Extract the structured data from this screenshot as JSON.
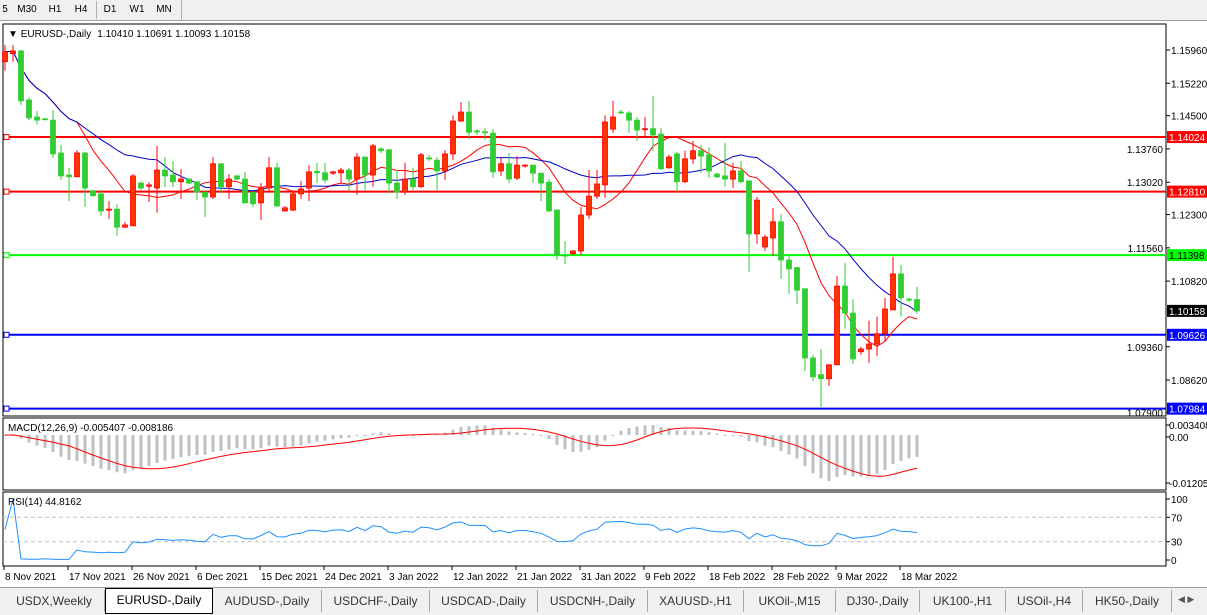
{
  "toolbar": {
    "timeframes": [
      {
        "label": "5"
      },
      {
        "label": "M30"
      },
      {
        "label": "H1"
      },
      {
        "label": "H4"
      },
      {
        "label": "D1",
        "active": true
      },
      {
        "label": "W1"
      },
      {
        "label": "MN"
      }
    ]
  },
  "chart": {
    "header": "EURUSD-,Daily",
    "ohlc_text": "1.10410 1.10691 1.10093 1.10158",
    "macd_label": "MACD(12,26,9) -0.005407 -0.008186",
    "rsi_label": "RSI(14) 44.8162",
    "macd_ticks": [
      "0.003408",
      "0.00",
      "-0.01205"
    ],
    "rsi_ticks": [
      "100",
      "70",
      "30",
      "0"
    ],
    "colors": {
      "bull": "#ff3300",
      "bear": "#32cd32",
      "fast_ma": "#ff0000",
      "slow_ma": "#0000c8",
      "macd_hist": "#c0c0c0",
      "macd_signal": "#ff0000",
      "rsi": "#1e90ff"
    }
  },
  "chart_data": {
    "type": "candlestick",
    "symbol": "EURUSD-",
    "timeframe": "Daily",
    "ylim": [
      1.078,
      1.1608
    ],
    "price_ticks": [
      "1.15960",
      "1.15220",
      "1.14500",
      "1.13760",
      "1.13020",
      "1.12300",
      "1.11560",
      "1.10820",
      "1.09360",
      "1.08620",
      "1.07900"
    ],
    "current_price": "1.10158",
    "hlines": [
      {
        "price": "1.14024",
        "color": "#ff0000"
      },
      {
        "price": "1.12810",
        "color": "#ff0000"
      },
      {
        "price": "1.11398",
        "color": "#00ff00"
      },
      {
        "price": "1.09626",
        "color": "#0000ff"
      },
      {
        "price": "1.07984",
        "color": "#0000ff"
      }
    ],
    "date_ticks": [
      {
        "label": "8 Nov 2021",
        "bar": 0
      },
      {
        "label": "17 Nov 2021",
        "bar": 8
      },
      {
        "label": "26 Nov 2021",
        "bar": 16
      },
      {
        "label": "6 Dec 2021",
        "bar": 24
      },
      {
        "label": "15 Dec 2021",
        "bar": 32
      },
      {
        "label": "24 Dec 2021",
        "bar": 40
      },
      {
        "label": "3 Jan 2022",
        "bar": 48
      },
      {
        "label": "12 Jan 2022",
        "bar": 56
      },
      {
        "label": "21 Jan 2022",
        "bar": 64
      },
      {
        "label": "31 Jan 2022",
        "bar": 72
      },
      {
        "label": "9 Feb 2022",
        "bar": 80
      },
      {
        "label": "18 Feb 2022",
        "bar": 88
      },
      {
        "label": "28 Feb 2022",
        "bar": 96
      },
      {
        "label": "9 Mar 2022",
        "bar": 104
      },
      {
        "label": "18 Mar 2022",
        "bar": 112
      }
    ],
    "ohlc": [
      [
        1.157,
        1.1607,
        1.155,
        1.1592
      ],
      [
        1.1588,
        1.1607,
        1.157,
        1.1594
      ],
      [
        1.1594,
        1.1596,
        1.1474,
        1.1483
      ],
      [
        1.1485,
        1.149,
        1.144,
        1.1445
      ],
      [
        1.1447,
        1.146,
        1.143,
        1.144
      ],
      [
        1.1443,
        1.1445,
        1.144,
        1.1441
      ],
      [
        1.144,
        1.1463,
        1.1356,
        1.1365
      ],
      [
        1.1367,
        1.1385,
        1.1307,
        1.1316
      ],
      [
        1.1318,
        1.1334,
        1.126,
        1.1314
      ],
      [
        1.1314,
        1.1374,
        1.1314,
        1.1367
      ],
      [
        1.1367,
        1.137,
        1.1247,
        1.1289
      ],
      [
        1.1283,
        1.1285,
        1.127,
        1.1272
      ],
      [
        1.1276,
        1.1285,
        1.1227,
        1.1238
      ],
      [
        1.124,
        1.126,
        1.122,
        1.1242
      ],
      [
        1.1242,
        1.1253,
        1.1183,
        1.1202
      ],
      [
        1.1202,
        1.1214,
        1.12,
        1.1207
      ],
      [
        1.1205,
        1.132,
        1.1205,
        1.1316
      ],
      [
        1.13,
        1.1304,
        1.1285,
        1.1289
      ],
      [
        1.1293,
        1.1302,
        1.1258,
        1.1296
      ],
      [
        1.1289,
        1.1383,
        1.1234,
        1.1329
      ],
      [
        1.1329,
        1.1358,
        1.1291,
        1.1316
      ],
      [
        1.1318,
        1.1349,
        1.1291,
        1.1303
      ],
      [
        1.1303,
        1.1331,
        1.1265,
        1.1309
      ],
      [
        1.1309,
        1.1311,
        1.1298,
        1.13
      ],
      [
        1.1303,
        1.1303,
        1.1262,
        1.128
      ],
      [
        1.128,
        1.128,
        1.1225,
        1.1269
      ],
      [
        1.1269,
        1.1358,
        1.1265,
        1.1343
      ],
      [
        1.1343,
        1.1343,
        1.1278,
        1.1292
      ],
      [
        1.1292,
        1.132,
        1.1265,
        1.1309
      ],
      [
        1.1316,
        1.1318,
        1.1307,
        1.1309
      ],
      [
        1.1309,
        1.1325,
        1.1256,
        1.1256
      ],
      [
        1.128,
        1.128,
        1.1247,
        1.1254
      ],
      [
        1.1256,
        1.13,
        1.1218,
        1.1289
      ],
      [
        1.1289,
        1.1358,
        1.128,
        1.1334
      ],
      [
        1.1334,
        1.1345,
        1.1247,
        1.1249
      ],
      [
        1.1238,
        1.1249,
        1.1236,
        1.1245
      ],
      [
        1.124,
        1.1283,
        1.1238,
        1.1276
      ],
      [
        1.1276,
        1.1305,
        1.1265,
        1.1287
      ],
      [
        1.1289,
        1.134,
        1.126,
        1.1325
      ],
      [
        1.1326,
        1.1345,
        1.13,
        1.1323
      ],
      [
        1.1323,
        1.1345,
        1.13,
        1.1307
      ],
      [
        1.1322,
        1.1327,
        1.1318,
        1.1325
      ],
      [
        1.1323,
        1.1334,
        1.13,
        1.1329
      ],
      [
        1.1329,
        1.1334,
        1.1282,
        1.1309
      ],
      [
        1.1309,
        1.1367,
        1.1274,
        1.1358
      ],
      [
        1.1358,
        1.1358,
        1.1285,
        1.1318
      ],
      [
        1.1318,
        1.1387,
        1.1292,
        1.1383
      ],
      [
        1.1376,
        1.138,
        1.1367,
        1.1372
      ],
      [
        1.1374,
        1.1376,
        1.1278,
        1.13
      ],
      [
        1.13,
        1.1329,
        1.1265,
        1.128
      ],
      [
        1.128,
        1.1345,
        1.1274,
        1.1309
      ],
      [
        1.1309,
        1.1334,
        1.1285,
        1.1292
      ],
      [
        1.1292,
        1.1367,
        1.1289,
        1.1363
      ],
      [
        1.1356,
        1.1363,
        1.1349,
        1.1354
      ],
      [
        1.1351,
        1.1358,
        1.1285,
        1.1327
      ],
      [
        1.1327,
        1.1374,
        1.1307,
        1.1365
      ],
      [
        1.1365,
        1.1451,
        1.1351,
        1.1438
      ],
      [
        1.1438,
        1.148,
        1.1436,
        1.1458
      ],
      [
        1.1458,
        1.1483,
        1.1398,
        1.1413
      ],
      [
        1.1416,
        1.142,
        1.1407,
        1.1414
      ],
      [
        1.1414,
        1.1423,
        1.1396,
        1.1412
      ],
      [
        1.1411,
        1.142,
        1.1312,
        1.1325
      ],
      [
        1.1327,
        1.1356,
        1.1316,
        1.1343
      ],
      [
        1.1343,
        1.1367,
        1.13,
        1.1309
      ],
      [
        1.1311,
        1.136,
        1.1307,
        1.134
      ],
      [
        1.1338,
        1.1342,
        1.1334,
        1.134
      ],
      [
        1.134,
        1.134,
        1.13,
        1.1322
      ],
      [
        1.1322,
        1.1322,
        1.126,
        1.13
      ],
      [
        1.1302,
        1.1309,
        1.1236,
        1.1238
      ],
      [
        1.124,
        1.1242,
        1.1129,
        1.114
      ],
      [
        1.114,
        1.1171,
        1.112,
        1.1138
      ],
      [
        1.1143,
        1.1151,
        1.114,
        1.1149
      ],
      [
        1.1149,
        1.1247,
        1.114,
        1.1229
      ],
      [
        1.1229,
        1.1329,
        1.122,
        1.1271
      ],
      [
        1.1271,
        1.1329,
        1.1265,
        1.1298
      ],
      [
        1.1296,
        1.1451,
        1.1267,
        1.1436
      ],
      [
        1.142,
        1.1483,
        1.1412,
        1.1447
      ],
      [
        1.1458,
        1.1463,
        1.1454,
        1.1456
      ],
      [
        1.1456,
        1.146,
        1.1412,
        1.144
      ],
      [
        1.144,
        1.1447,
        1.1394,
        1.1418
      ],
      [
        1.142,
        1.1447,
        1.14,
        1.1421
      ],
      [
        1.1421,
        1.1494,
        1.1372,
        1.1407
      ],
      [
        1.1409,
        1.1423,
        1.1329,
        1.1332
      ],
      [
        1.1334,
        1.1363,
        1.1332,
        1.1358
      ],
      [
        1.1365,
        1.137,
        1.1278,
        1.1303
      ],
      [
        1.1303,
        1.1372,
        1.13,
        1.1354
      ],
      [
        1.1354,
        1.1394,
        1.1343,
        1.1372
      ],
      [
        1.1372,
        1.1385,
        1.1323,
        1.136
      ],
      [
        1.1363,
        1.138,
        1.1312,
        1.1327
      ],
      [
        1.132,
        1.1323,
        1.1311,
        1.1314
      ],
      [
        1.1316,
        1.1389,
        1.1292,
        1.1309
      ],
      [
        1.1309,
        1.1345,
        1.1289,
        1.1327
      ],
      [
        1.1327,
        1.1349,
        1.13,
        1.1303
      ],
      [
        1.1305,
        1.1305,
        1.1103,
        1.1187
      ],
      [
        1.1187,
        1.1269,
        1.1165,
        1.1262
      ],
      [
        1.1158,
        1.1185,
        1.1149,
        1.118
      ],
      [
        1.1178,
        1.1245,
        1.1138,
        1.1214
      ],
      [
        1.1214,
        1.1231,
        1.1087,
        1.1129
      ],
      [
        1.1129,
        1.114,
        1.1054,
        1.1109
      ],
      [
        1.1112,
        1.1114,
        1.1031,
        1.1062
      ],
      [
        1.1065,
        1.1065,
        1.0882,
        1.0911
      ],
      [
        1.0911,
        1.0918,
        1.086,
        1.0869
      ],
      [
        1.0874,
        1.0931,
        1.0802,
        1.0865
      ],
      [
        1.0865,
        1.0896,
        1.0849,
        1.0896
      ],
      [
        1.0896,
        1.1093,
        1.0896,
        1.1071
      ],
      [
        1.1071,
        1.1122,
        1.0976,
        1.1011
      ],
      [
        1.1011,
        1.1042,
        1.0898,
        1.0909
      ],
      [
        1.0925,
        1.0936,
        1.0918,
        1.0931
      ],
      [
        1.0931,
        1.0994,
        1.09,
        1.0942
      ],
      [
        1.0942,
        1.1003,
        1.0916,
        1.0965
      ],
      [
        1.0965,
        1.1045,
        1.0947,
        1.102
      ],
      [
        1.1018,
        1.1136,
        1.1018,
        1.1098
      ],
      [
        1.1098,
        1.1118,
        1.1003,
        1.1045
      ],
      [
        1.1042,
        1.1045,
        1.1036,
        1.104
      ],
      [
        1.1041,
        1.10691,
        1.10093,
        1.10158
      ]
    ]
  },
  "tabs": [
    {
      "label": "USDX,Weekly"
    },
    {
      "label": "EURUSD-,Daily",
      "active": true
    },
    {
      "label": "AUDUSD-,Daily"
    },
    {
      "label": "USDCHF-,Daily"
    },
    {
      "label": "USDCAD-,Daily"
    },
    {
      "label": "USDCNH-,Daily"
    },
    {
      "label": "XAUUSD-,H1"
    },
    {
      "label": "UKOil-,M15"
    },
    {
      "label": "DJ30-,Daily"
    },
    {
      "label": "UK100-,H1"
    },
    {
      "label": "USOil-,H4"
    },
    {
      "label": "HK50-,Daily"
    }
  ]
}
